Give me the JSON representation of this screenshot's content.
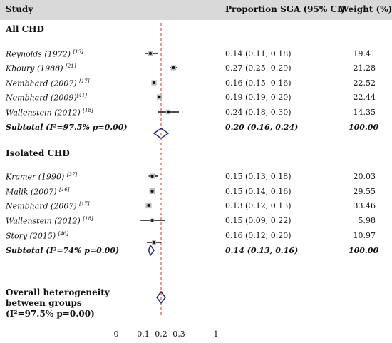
{
  "header": {
    "study": "Study",
    "ci": "Proportion SGA (95% CI)",
    "weight": "Weight (%)"
  },
  "groups": [
    {
      "title": "All CHD",
      "studies": [
        {
          "label": "Reynolds (1972)",
          "ref": "[13]",
          "ci": "0.14 (0.11, 0.18)",
          "weight": "19.41"
        },
        {
          "label": "Khoury (1988)",
          "ref": "[21]",
          "ci": "0.27 (0.25, 0.29)",
          "weight": "21.28"
        },
        {
          "label": "Nembhard (2007)",
          "ref": "[17]",
          "ci": "0.16 (0.15, 0.16)",
          "weight": "22.52"
        },
        {
          "label": "Nembhard (2009)",
          "ref": "[41]",
          "ci": "0.19 (0.19, 0.20)",
          "weight": "22.44"
        },
        {
          "label": "Wallenstein (2012)",
          "ref": "[18]",
          "ci": "0.24 (0.18, 0.30)",
          "weight": "14.35"
        }
      ],
      "subtotal": {
        "label": "Subtotal (I²=97.5% p=0.00)",
        "ci": "0.20 (0.16, 0.24)",
        "weight": "100.00"
      }
    },
    {
      "title": "Isolated CHD",
      "studies": [
        {
          "label": "Kramer (1990)",
          "ref": "[37]",
          "ci": "0.15 (0.13, 0.18)",
          "weight": "20.03"
        },
        {
          "label": "Malik (2007)",
          "ref": "[16]",
          "ci": "0.15 (0.14, 0.16)",
          "weight": "29.55"
        },
        {
          "label": "Nembhard (2007)",
          "ref": "[17]",
          "ci": "0.13 (0.12, 0.13)",
          "weight": "33.46"
        },
        {
          "label": "Wallenstein (2012)",
          "ref": "[18]",
          "ci": "0.15 (0.09, 0.22)",
          "weight": "5.98"
        },
        {
          "label": "Story (2015)",
          "ref": "[46]",
          "ci": "0.16 (0.12, 0.20)",
          "weight": "10.97"
        }
      ],
      "subtotal": {
        "label": "Subtotal (I²=74% p=0.00)",
        "ci": "0.14 (0.13, 0.16)",
        "weight": "100.00"
      }
    }
  ],
  "overall": {
    "line1": "Overall heterogeneity",
    "line2": "between groups",
    "line3": "(I²=97.5% p=0.00)"
  },
  "chart_data": {
    "type": "scatter",
    "x_ticks": [
      "0",
      "0.1",
      "0.2",
      "0.3",
      "1"
    ],
    "reference_line": 0.2,
    "reference_color": "#c0392b",
    "diamond_color": "#1f2a78",
    "rows": [
      {
        "kind": "study",
        "est": 0.14,
        "lo": 0.11,
        "hi": 0.18,
        "weight": 19.41
      },
      {
        "kind": "study",
        "est": 0.27,
        "lo": 0.25,
        "hi": 0.29,
        "weight": 21.28
      },
      {
        "kind": "study",
        "est": 0.16,
        "lo": 0.15,
        "hi": 0.16,
        "weight": 22.52
      },
      {
        "kind": "study",
        "est": 0.19,
        "lo": 0.19,
        "hi": 0.2,
        "weight": 22.44
      },
      {
        "kind": "study",
        "est": 0.24,
        "lo": 0.18,
        "hi": 0.3,
        "weight": 14.35
      },
      {
        "kind": "subtotal",
        "est": 0.2,
        "lo": 0.16,
        "hi": 0.24
      },
      {
        "kind": "study",
        "est": 0.15,
        "lo": 0.13,
        "hi": 0.18,
        "weight": 20.03
      },
      {
        "kind": "study",
        "est": 0.15,
        "lo": 0.14,
        "hi": 0.16,
        "weight": 29.55
      },
      {
        "kind": "study",
        "est": 0.13,
        "lo": 0.12,
        "hi": 0.13,
        "weight": 33.46
      },
      {
        "kind": "study",
        "est": 0.15,
        "lo": 0.09,
        "hi": 0.22,
        "weight": 5.98
      },
      {
        "kind": "study",
        "est": 0.16,
        "lo": 0.12,
        "hi": 0.2,
        "weight": 10.97
      },
      {
        "kind": "subtotal",
        "est": 0.14,
        "lo": 0.13,
        "hi": 0.16
      },
      {
        "kind": "overall",
        "est": 0.2
      }
    ]
  }
}
